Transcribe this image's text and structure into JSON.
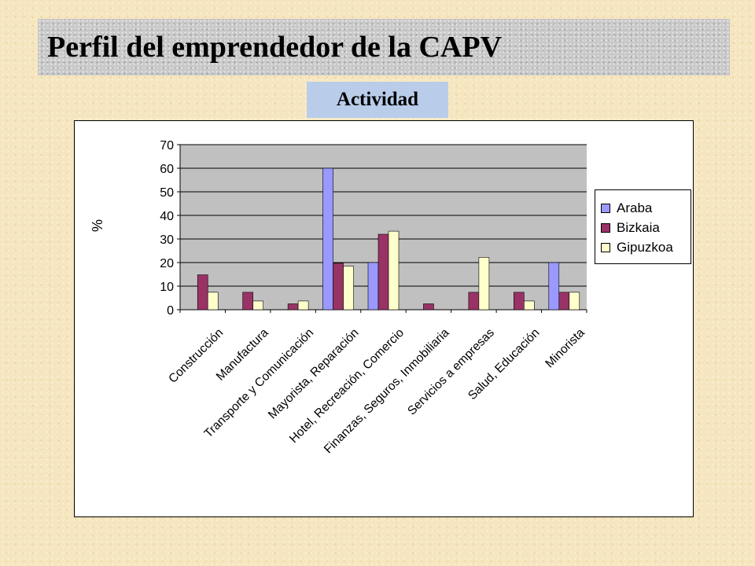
{
  "slide": {
    "title": "Perfil del emprendedor de la CAPV",
    "subtitle": "Actividad"
  },
  "colors": {
    "plot_background": "#c0c0c0",
    "Araba": "#9999ff",
    "Bizkaia": "#993366",
    "Gipuzkoa": "#ffffcc"
  },
  "chart_data": {
    "type": "bar",
    "title": "",
    "xlabel": "",
    "ylabel": "%",
    "ylim": [
      0,
      70
    ],
    "yticks": [
      0,
      10,
      20,
      30,
      40,
      50,
      60,
      70
    ],
    "grid": true,
    "legend_position": "right",
    "categories": [
      "Construcción",
      "Manufactura",
      "Transporte y Comunicación",
      "Mayorista, Reparación",
      "Hotel, Recreación, Comercio",
      "Finanzas, Seguros, Inmobiliaria",
      "Servicios a empresas",
      "Salud, Educación",
      "Minorista"
    ],
    "series": [
      {
        "name": "Araba",
        "values": [
          0,
          0,
          0,
          60,
          20,
          0,
          0,
          0,
          20
        ]
      },
      {
        "name": "Bizkaia",
        "values": [
          14.8,
          7.4,
          2.5,
          19.7,
          32,
          2.5,
          7.4,
          7.4,
          7.4
        ]
      },
      {
        "name": "Gipuzkoa",
        "values": [
          7.4,
          3.7,
          3.7,
          18.5,
          33.3,
          0,
          22.2,
          3.7,
          7.4
        ]
      }
    ]
  }
}
